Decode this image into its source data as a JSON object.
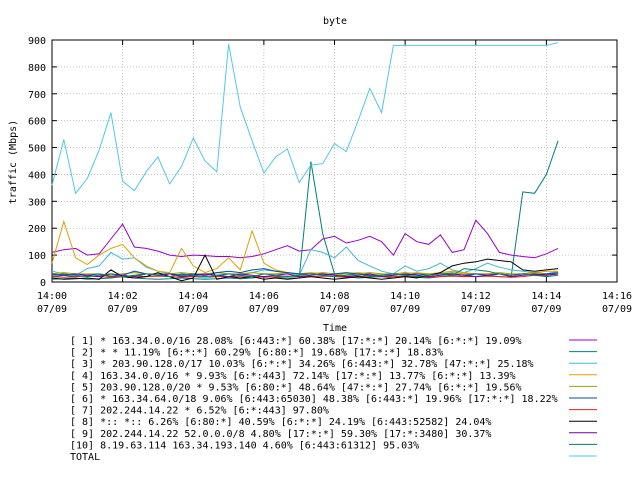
{
  "chart_data": {
    "type": "line",
    "title": "byte",
    "xlabel": "Time",
    "ylabel": "traffic (Mbps)",
    "ylim": [
      0,
      900
    ],
    "xlim_minutes": [
      0,
      16
    ],
    "y_ticks": [
      0,
      100,
      200,
      300,
      400,
      500,
      600,
      700,
      800,
      900
    ],
    "x_ticks": [
      {
        "time": "14:00",
        "date": "07/09"
      },
      {
        "time": "14:02",
        "date": "07/09"
      },
      {
        "time": "14:04",
        "date": "07/09"
      },
      {
        "time": "14:06",
        "date": "07/09"
      },
      {
        "time": "14:08",
        "date": "07/09"
      },
      {
        "time": "14:10",
        "date": "07/09"
      },
      {
        "time": "14:12",
        "date": "07/09"
      },
      {
        "time": "14:14",
        "date": "07/09"
      },
      {
        "time": "14:16",
        "date": "07/09"
      }
    ],
    "x": [
      0,
      0.333,
      0.667,
      1.0,
      1.333,
      1.667,
      2.0,
      2.333,
      2.667,
      3.0,
      3.333,
      3.667,
      4.0,
      4.333,
      4.667,
      5.0,
      5.333,
      5.667,
      6.0,
      6.333,
      6.667,
      7.0,
      7.333,
      7.667,
      8.0,
      8.333,
      8.667,
      9.0,
      9.333,
      9.667,
      10.0,
      10.333,
      10.667,
      11.0,
      11.333,
      11.667,
      12.0,
      12.333,
      12.667,
      13.0,
      13.333,
      13.667,
      14.0,
      14.333
    ],
    "series": [
      {
        "name": "[ 1] * 163.34.0.0/16 28.08% [6:443:*] 60.38% [17:*:*] 20.14% [6:*:*] 19.09%",
        "color": "#9a00c8",
        "values": [
          110,
          120,
          125,
          100,
          105,
          160,
          215,
          130,
          125,
          115,
          100,
          95,
          100,
          98,
          95,
          95,
          90,
          95,
          105,
          120,
          135,
          115,
          120,
          160,
          170,
          145,
          155,
          170,
          150,
          100,
          180,
          150,
          140,
          175,
          110,
          120,
          230,
          180,
          110,
          100,
          95,
          90,
          105,
          125
        ]
      },
      {
        "name": "[ 2] * * 11.19% [6:*:*] 60.29% [6:80:*] 19.68% [17:*:*] 18.83%",
        "color": "#007f7f",
        "values": [
          10,
          12,
          15,
          10,
          12,
          15,
          20,
          15,
          12,
          10,
          12,
          15,
          12,
          10,
          12,
          15,
          12,
          15,
          20,
          18,
          15,
          15,
          448,
          180,
          30,
          20,
          15,
          18,
          20,
          15,
          20,
          18,
          15,
          20,
          25,
          20,
          30,
          25,
          20,
          18,
          335,
          330,
          400,
          525
        ]
      },
      {
        "name": "[ 3] * 203.90.128.0/17 10.03% [6:*:*] 34.26% [6:443:*] 32.78% [47:*:*] 25.18%",
        "color": "#40b8d8",
        "values": [
          40,
          30,
          25,
          50,
          60,
          110,
          85,
          90,
          55,
          40,
          30,
          25,
          20,
          15,
          20,
          30,
          25,
          35,
          45,
          40,
          35,
          25,
          120,
          110,
          90,
          130,
          80,
          60,
          40,
          30,
          60,
          40,
          50,
          70,
          45,
          35,
          50,
          70,
          55,
          45,
          40,
          35,
          30,
          40
        ]
      },
      {
        "name": "[ 4] 163.34.0.0/16 * 9.93% [6:*:443] 72.14% [17:*:*] 13.77% [6:*:*] 13.39%",
        "color": "#e0a000",
        "values": [
          70,
          225,
          90,
          65,
          100,
          125,
          140,
          90,
          60,
          40,
          35,
          125,
          60,
          35,
          50,
          90,
          45,
          190,
          70,
          45,
          35,
          30,
          35,
          30,
          25,
          30,
          35,
          30,
          25,
          25,
          30,
          35,
          30,
          35,
          40,
          35,
          30,
          30,
          30,
          25,
          30,
          35,
          40,
          40
        ]
      },
      {
        "name": "[ 5] 203.90.128.0/20 * 9.53% [6:80:*] 48.64% [47:*:*] 27.74% [6:*:*] 19.56%",
        "color": "#a0a000",
        "values": [
          30,
          35,
          30,
          30,
          30,
          25,
          30,
          35,
          30,
          30,
          30,
          35,
          30,
          30,
          35,
          30,
          30,
          35,
          30,
          30,
          35,
          30,
          30,
          35,
          30,
          30,
          30,
          35,
          30,
          30,
          35,
          30,
          30,
          30,
          35,
          30,
          30,
          30,
          35,
          30,
          30,
          35,
          30,
          30
        ]
      },
      {
        "name": "[ 6] * 163.34.64.0/18 9.06% [6:443:65030] 48.38% [6:443:*] 19.96% [17:*:*] 18.22%",
        "color": "#0050a0",
        "values": [
          20,
          25,
          20,
          25,
          30,
          20,
          25,
          40,
          30,
          25,
          30,
          25,
          30,
          25,
          35,
          40,
          35,
          45,
          50,
          40,
          35,
          30,
          30,
          25,
          30,
          35,
          30,
          25,
          25,
          30,
          25,
          30,
          25,
          30,
          30,
          25,
          30,
          25,
          30,
          25,
          30,
          25,
          30,
          35
        ]
      },
      {
        "name": "[ 7] 202.244.14.22 * 6.52% [6:*:443] 97.80%",
        "color": "#e02020",
        "values": [
          20,
          18,
          20,
          22,
          20,
          18,
          20,
          22,
          20,
          22,
          20,
          18,
          20,
          22,
          20,
          20,
          22,
          20,
          18,
          20,
          22,
          20,
          20,
          22,
          20,
          18,
          20,
          22,
          20,
          20,
          22,
          20,
          18,
          20,
          22,
          20,
          20,
          22,
          20,
          18,
          20,
          25,
          25,
          30
        ]
      },
      {
        "name": "[ 8] *:: *:: 6.26% [6:80:*] 40.59% [6:*:*] 24.19% [6:443:52582] 24.04%",
        "color": "#000000",
        "values": [
          15,
          10,
          12,
          15,
          10,
          45,
          20,
          15,
          20,
          35,
          20,
          5,
          15,
          100,
          10,
          20,
          15,
          20,
          10,
          15,
          10,
          15,
          20,
          15,
          10,
          15,
          20,
          15,
          10,
          15,
          20,
          15,
          25,
          35,
          60,
          70,
          75,
          85,
          80,
          75,
          45,
          40,
          45,
          50
        ]
      },
      {
        "name": "[ 9] 202.244.14.22 52.0.0.0/8 4.80% [17:*:*] 59.30% [17:*:3480] 30.37%",
        "color": "#7000a0",
        "values": [
          30,
          25,
          30,
          25,
          20,
          30,
          25,
          20,
          30,
          25,
          30,
          20,
          25,
          30,
          25,
          20,
          30,
          25,
          20,
          25,
          30,
          20,
          25,
          30,
          25,
          20,
          25,
          30,
          20,
          25,
          30,
          25,
          20,
          25,
          30,
          25,
          20,
          25,
          30,
          20,
          25,
          30,
          25,
          30
        ]
      },
      {
        "name": "[10] 8.19.63.114 163.34.193.140 4.60% [6:443:61312] 95.03%",
        "color": "#008060",
        "values": [
          25,
          30,
          25,
          20,
          25,
          30,
          20,
          25,
          30,
          25,
          20,
          30,
          25,
          20,
          25,
          30,
          25,
          20,
          30,
          25,
          20,
          25,
          30,
          25,
          20,
          25,
          30,
          20,
          25,
          30,
          25,
          20,
          25,
          30,
          25,
          50,
          45,
          40,
          30,
          25,
          30,
          25,
          20,
          25
        ]
      },
      {
        "name": "TOTAL",
        "color": "#50c8e8",
        "values": [
          360,
          530,
          330,
          385,
          490,
          630,
          375,
          340,
          410,
          465,
          365,
          430,
          535,
          450,
          410,
          885,
          650,
          525,
          405,
          465,
          495,
          370,
          435,
          440,
          515,
          485,
          600,
          720,
          630,
          880,
          880,
          880,
          880,
          880,
          880,
          880,
          880,
          880,
          880,
          880,
          880,
          880,
          880,
          890
        ]
      }
    ]
  }
}
